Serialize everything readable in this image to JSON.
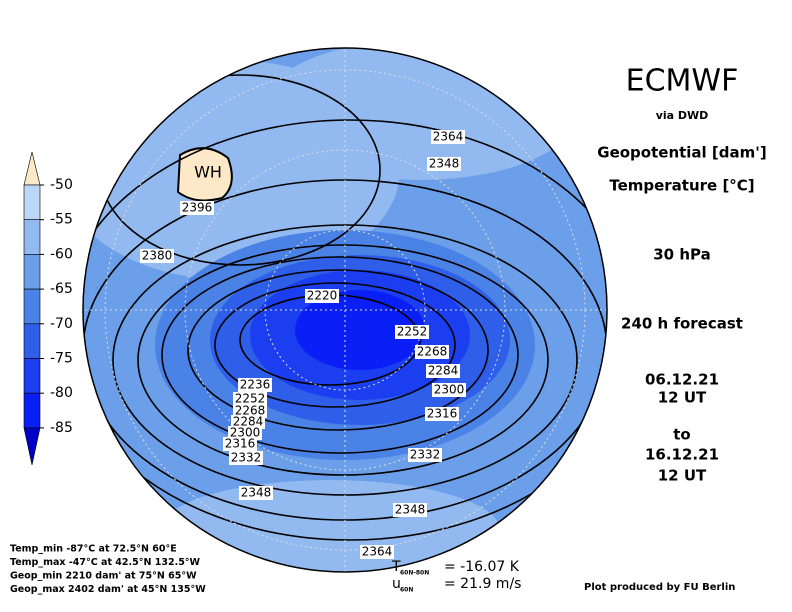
{
  "header": {
    "title": "ECMWF",
    "source": "via DWD"
  },
  "fields": [
    "Geopotential [dam']",
    "Temperature [°C]"
  ],
  "level": "30 hPa",
  "forecast": "240 h forecast",
  "init": {
    "date": "06.12.21",
    "time": "12 UT"
  },
  "connector": "to",
  "valid": {
    "date": "16.12.21",
    "time": "12 UT"
  },
  "legend": {
    "ticks": [
      -50,
      -55,
      -60,
      -65,
      -70,
      -75,
      -80,
      -85
    ],
    "colors": [
      "#fde9c8",
      "#bcd6f7",
      "#92b9f0",
      "#6c9fe9",
      "#4b82e6",
      "#2f5ee9",
      "#1a3ef0",
      "#0a1ff5",
      "#0000c8"
    ]
  },
  "map": {
    "high_label": "WH",
    "contour_labels": [
      2364,
      2348,
      2396,
      2380,
      2220,
      2252,
      2268,
      2284,
      2300,
      2316,
      2236,
      2252,
      2268,
      2284,
      2300,
      2316,
      2332,
      2332,
      2348,
      2348,
      2364
    ]
  },
  "stats": [
    "Temp_min -87°C at 72.5°N 60°E",
    "Temp_max -47°C at 42.5°N 132.5°W",
    "Geop_min 2210 dam' at 75°N 65°W",
    "Geop_max 2402 dam' at 45°N 135°W"
  ],
  "indices": [
    {
      "symbol": "T",
      "subscript": "60N-80N",
      "text": "= -16.07 K"
    },
    {
      "symbol": "u",
      "subscript": "60N",
      "text": "= 21.9 m/s"
    }
  ],
  "credit": "Plot produced by FU Berlin"
}
